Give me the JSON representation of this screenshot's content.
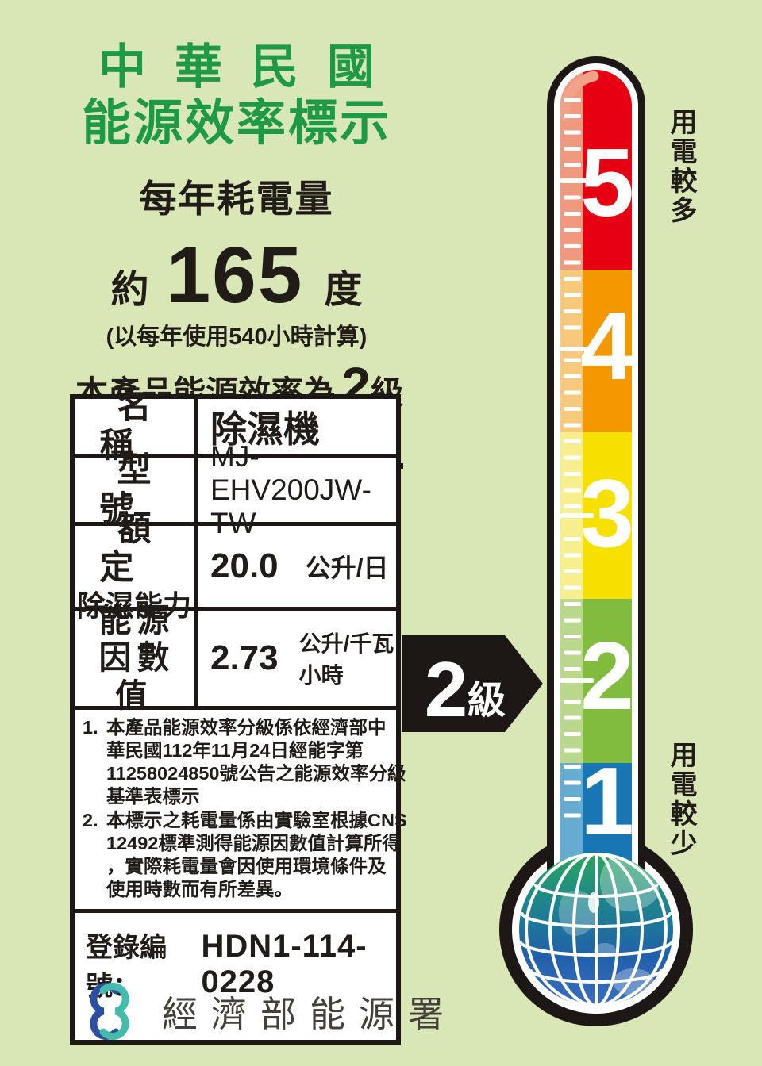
{
  "header": {
    "title_line1": "中華民國",
    "title_line2": "能源效率標示",
    "annual_heading": "每年耗電量",
    "approx": "約",
    "kwh_value": "165",
    "kwh_unit": "度",
    "calc_note": "(以每年使用540小時計算)",
    "grade_prefix": "本產品能源效率為第",
    "grade_value": "2",
    "grade_suffix": "級"
  },
  "spec_table": {
    "row_name_label": "名稱",
    "row_name_value": "除濕機",
    "row_model_label": "型號",
    "row_model_value": "MJ-EHV200JW-TW",
    "row_capacity_label_line1": "額定",
    "row_capacity_label_line2": "除濕能力",
    "row_capacity_value": "20.0",
    "row_capacity_unit": "公升/日",
    "row_ef_label_line1": "能源",
    "row_ef_label_line2": "因數值",
    "row_ef_value": "2.73",
    "row_ef_unit": "公升/千瓦小時",
    "note1_num": "1.",
    "note1": "本產品能源效率分級係依經濟部中\n華民國112年11月24日經能字第\n11258024850號公告之能源效率分級\n基準表標示",
    "note2_num": "2.",
    "note2": "本標示之耗電量係由實驗室根據CNS\n12492標準測得能源因數值計算所得\n，實際耗電量會因使用環境條件及\n使用時數而有所差異。",
    "registration_label": "登錄編號：",
    "registration_number": "HDN1-114-0228"
  },
  "thermometer": {
    "more_power_label": "用電較多",
    "less_power_label": "用電較少",
    "pointer_value": "2",
    "pointer_unit": "級",
    "levels": [
      {
        "value": "5",
        "color": "#e60012",
        "strip": "#f0997e"
      },
      {
        "value": "4",
        "color": "#f39800",
        "strip": "#f6c97d"
      },
      {
        "value": "3",
        "color": "#f7e000",
        "strip": "#f7ef8d"
      },
      {
        "value": "2",
        "color": "#82bc3f",
        "strip": "#b9d88b"
      },
      {
        "value": "1",
        "color": "#1876b5",
        "strip": "#66abd0"
      }
    ]
  },
  "footer": {
    "agency": "經濟部能源署"
  }
}
